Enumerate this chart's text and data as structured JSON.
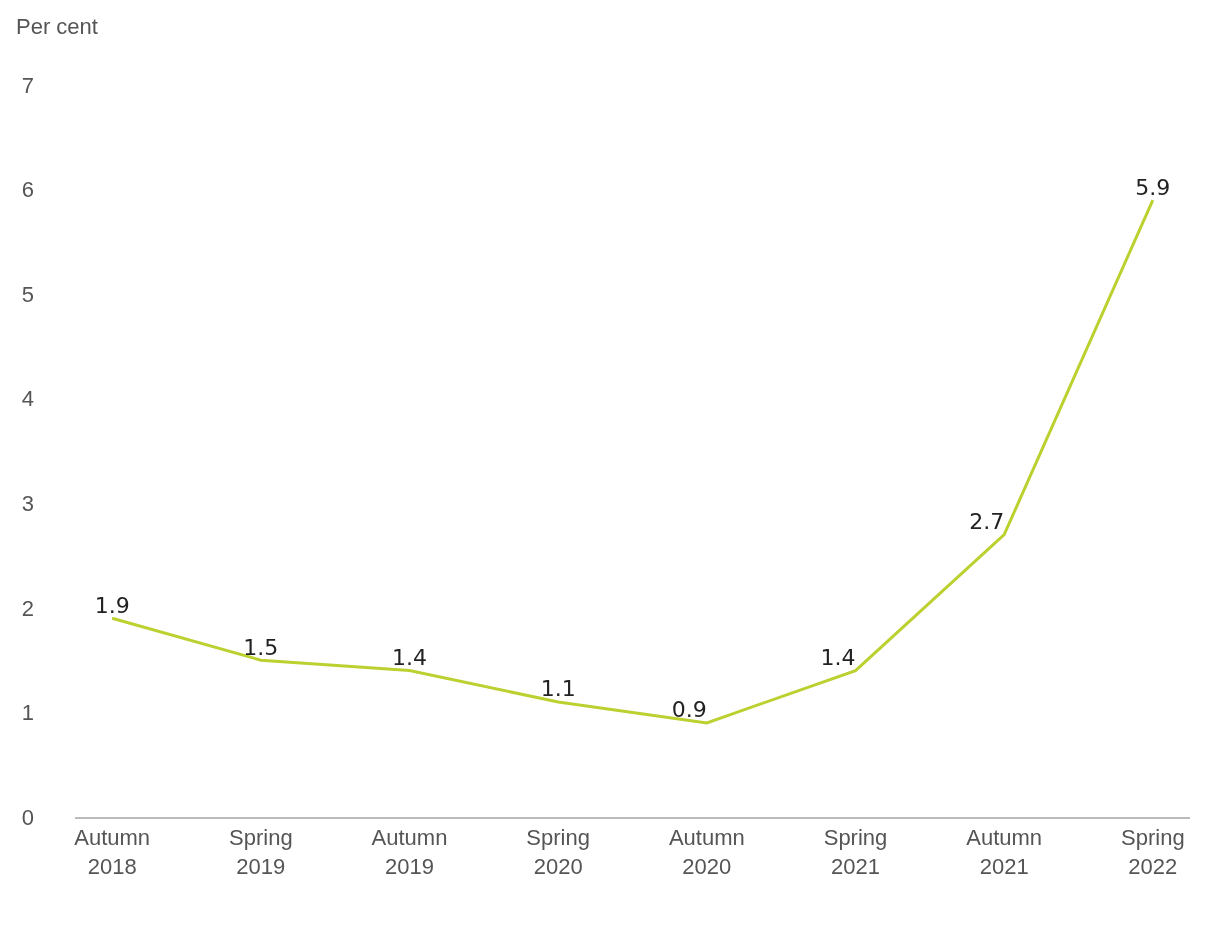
{
  "chart_data": {
    "type": "line",
    "ylabel": "Per cent",
    "categories": [
      "Autumn 2018",
      "Spring 2019",
      "Autumn 2019",
      "Spring 2020",
      "Autumn 2020",
      "Spring 2021",
      "Autumn 2021",
      "Spring 2022"
    ],
    "series": [
      {
        "color": "#bcd030",
        "values": [
          1.9,
          1.5,
          1.4,
          1.1,
          0.9,
          1.4,
          2.7,
          5.9
        ]
      }
    ],
    "ylim": [
      0,
      7
    ],
    "yticks": [
      0,
      1,
      2,
      3,
      4,
      5,
      6,
      7
    ],
    "grid": false,
    "marker": "none",
    "line_style": "solid",
    "data_labels": true
  }
}
